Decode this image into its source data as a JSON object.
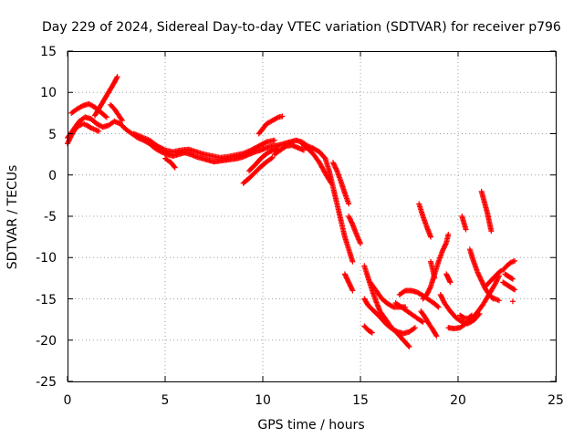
{
  "chart_data": {
    "type": "scatter",
    "title": "Day 229 of 2024, Sidereal Day-to-day VTEC variation (SDTVAR) for receiver p796",
    "xlabel": "GPS time / hours",
    "ylabel": "SDTVAR / TECUs",
    "xlim": [
      0,
      25
    ],
    "ylim": [
      -25,
      15
    ],
    "x_ticks": [
      "0",
      "5",
      "10",
      "15",
      "20",
      "25"
    ],
    "y_ticks": [
      "15",
      "10",
      "5",
      "0",
      "-5",
      "-10",
      "-15",
      "-20",
      "-25"
    ],
    "grid": true,
    "marker": "+",
    "color": "#ff0000",
    "tracks": [
      {
        "points": [
          [
            0.0,
            4.5
          ],
          [
            0.3,
            5.5
          ],
          [
            0.6,
            6.5
          ],
          [
            0.9,
            7.0
          ],
          [
            1.2,
            6.8
          ],
          [
            1.5,
            6.2
          ],
          [
            1.8,
            5.8
          ],
          [
            2.1,
            6.0
          ],
          [
            2.4,
            6.5
          ],
          [
            2.7,
            6.2
          ],
          [
            3.0,
            5.5
          ],
          [
            3.3,
            5.0
          ],
          [
            3.6,
            4.5
          ],
          [
            3.9,
            4.2
          ],
          [
            4.2,
            3.8
          ],
          [
            4.5,
            3.2
          ],
          [
            4.8,
            2.8
          ],
          [
            5.1,
            2.5
          ],
          [
            5.4,
            2.3
          ],
          [
            5.7,
            2.5
          ],
          [
            6.0,
            2.7
          ],
          [
            6.3,
            2.5
          ],
          [
            6.6,
            2.2
          ],
          [
            6.9,
            2.0
          ],
          [
            7.2,
            1.8
          ],
          [
            7.5,
            1.6
          ],
          [
            7.8,
            1.7
          ],
          [
            8.1,
            1.8
          ],
          [
            8.4,
            1.9
          ],
          [
            8.7,
            2.0
          ],
          [
            9.0,
            2.2
          ],
          [
            9.3,
            2.5
          ],
          [
            9.6,
            2.8
          ],
          [
            9.9,
            3.0
          ],
          [
            10.2,
            3.3
          ],
          [
            10.5,
            3.5
          ],
          [
            10.8,
            3.6
          ],
          [
            11.1,
            3.8
          ],
          [
            11.4,
            4.0
          ],
          [
            11.7,
            4.2
          ],
          [
            12.0,
            4.0
          ],
          [
            12.3,
            3.5
          ],
          [
            12.6,
            3.2
          ],
          [
            12.9,
            2.8
          ],
          [
            13.2,
            2.0
          ],
          [
            13.4,
            0.5
          ],
          [
            13.6,
            -1.5
          ],
          [
            13.8,
            -3.5
          ],
          [
            14.0,
            -5.5
          ],
          [
            14.2,
            -7.5
          ],
          [
            14.4,
            -9.0
          ],
          [
            14.6,
            -10.5
          ]
        ]
      },
      {
        "points": [
          [
            0.0,
            3.8
          ],
          [
            0.2,
            4.8
          ],
          [
            0.4,
            5.6
          ],
          [
            0.6,
            6.0
          ],
          [
            0.8,
            6.2
          ],
          [
            1.0,
            6.0
          ],
          [
            1.2,
            5.7
          ],
          [
            1.4,
            5.5
          ],
          [
            1.6,
            5.3
          ]
        ]
      },
      {
        "points": [
          [
            0.2,
            7.5
          ],
          [
            0.5,
            8.0
          ],
          [
            0.8,
            8.4
          ],
          [
            1.1,
            8.6
          ],
          [
            1.4,
            8.2
          ],
          [
            1.7,
            7.6
          ],
          [
            2.0,
            7.0
          ]
        ]
      },
      {
        "points": [
          [
            1.4,
            7.2
          ],
          [
            1.6,
            8.0
          ],
          [
            1.8,
            8.8
          ],
          [
            2.0,
            9.6
          ],
          [
            2.2,
            10.4
          ],
          [
            2.4,
            11.2
          ],
          [
            2.55,
            11.9
          ]
        ]
      },
      {
        "points": [
          [
            2.2,
            8.5
          ],
          [
            2.4,
            8.0
          ],
          [
            2.6,
            7.3
          ],
          [
            2.8,
            6.6
          ]
        ]
      },
      {
        "points": [
          [
            3.4,
            5.0
          ],
          [
            3.8,
            4.6
          ],
          [
            4.2,
            4.2
          ],
          [
            4.6,
            3.5
          ],
          [
            5.0,
            3.0
          ],
          [
            5.4,
            2.8
          ],
          [
            5.8,
            3.0
          ],
          [
            6.2,
            3.1
          ],
          [
            6.6,
            2.8
          ],
          [
            7.0,
            2.5
          ],
          [
            7.4,
            2.3
          ],
          [
            7.8,
            2.1
          ],
          [
            8.2,
            2.2
          ],
          [
            8.6,
            2.4
          ],
          [
            9.0,
            2.6
          ],
          [
            9.4,
            3.0
          ],
          [
            9.8,
            3.5
          ],
          [
            10.2,
            4.0
          ],
          [
            10.6,
            4.2
          ]
        ]
      },
      {
        "points": [
          [
            5.0,
            2.0
          ],
          [
            5.3,
            1.5
          ],
          [
            5.5,
            0.9
          ]
        ]
      },
      {
        "points": [
          [
            9.0,
            -1.0
          ],
          [
            9.3,
            -0.4
          ],
          [
            9.6,
            0.3
          ],
          [
            9.9,
            1.0
          ],
          [
            10.2,
            1.6
          ],
          [
            10.5,
            2.1
          ]
        ]
      },
      {
        "points": [
          [
            9.3,
            0.5
          ],
          [
            9.6,
            1.2
          ],
          [
            9.9,
            2.0
          ],
          [
            10.2,
            2.6
          ],
          [
            10.5,
            3.0
          ],
          [
            10.8,
            3.2
          ]
        ]
      },
      {
        "points": [
          [
            9.8,
            5.0
          ],
          [
            10.0,
            5.6
          ],
          [
            10.2,
            6.2
          ],
          [
            10.5,
            6.6
          ],
          [
            10.8,
            7.0
          ],
          [
            11.0,
            7.1
          ]
        ]
      },
      {
        "points": [
          [
            10.6,
            2.5
          ],
          [
            10.9,
            3.0
          ],
          [
            11.2,
            3.5
          ],
          [
            11.5,
            3.6
          ],
          [
            11.8,
            3.3
          ],
          [
            12.1,
            3.0
          ]
        ]
      },
      {
        "points": [
          [
            12.0,
            3.8
          ],
          [
            12.3,
            3.2
          ],
          [
            12.6,
            2.5
          ],
          [
            12.9,
            1.5
          ],
          [
            13.2,
            0.2
          ],
          [
            13.5,
            -1.0
          ]
        ]
      },
      {
        "points": [
          [
            13.6,
            1.5
          ],
          [
            13.8,
            0.5
          ],
          [
            14.0,
            -0.8
          ],
          [
            14.2,
            -2.2
          ],
          [
            14.4,
            -3.5
          ]
        ]
      },
      {
        "points": [
          [
            14.4,
            -5.0
          ],
          [
            14.6,
            -6.0
          ],
          [
            14.8,
            -7.2
          ],
          [
            15.0,
            -8.3
          ]
        ]
      },
      {
        "points": [
          [
            14.2,
            -12.0
          ],
          [
            14.4,
            -13.0
          ],
          [
            14.6,
            -14.0
          ]
        ]
      },
      {
        "points": [
          [
            15.2,
            -11.0
          ],
          [
            15.4,
            -12.5
          ],
          [
            15.6,
            -14.0
          ],
          [
            15.8,
            -15.3
          ],
          [
            16.0,
            -16.5
          ],
          [
            16.3,
            -17.5
          ],
          [
            16.6,
            -18.5
          ],
          [
            16.9,
            -19.2
          ],
          [
            17.2,
            -20.0
          ],
          [
            17.5,
            -20.8
          ]
        ]
      },
      {
        "points": [
          [
            15.2,
            -15.0
          ],
          [
            15.4,
            -15.8
          ],
          [
            15.7,
            -16.5
          ],
          [
            16.0,
            -17.2
          ],
          [
            16.3,
            -18.0
          ],
          [
            16.6,
            -18.6
          ],
          [
            16.9,
            -19.0
          ],
          [
            17.2,
            -19.2
          ],
          [
            17.5,
            -19.0
          ],
          [
            17.8,
            -18.5
          ]
        ]
      },
      {
        "points": [
          [
            15.5,
            -13.0
          ],
          [
            15.8,
            -14.0
          ],
          [
            16.1,
            -15.0
          ],
          [
            16.4,
            -15.6
          ],
          [
            16.7,
            -16.0
          ],
          [
            17.0,
            -16.0
          ],
          [
            17.3,
            -16.0
          ]
        ]
      },
      {
        "points": [
          [
            15.2,
            -18.3
          ],
          [
            15.4,
            -18.8
          ],
          [
            15.6,
            -19.1
          ]
        ]
      },
      {
        "points": [
          [
            17.0,
            -14.5
          ],
          [
            17.3,
            -14.0
          ],
          [
            17.6,
            -14.0
          ],
          [
            17.9,
            -14.2
          ],
          [
            18.2,
            -14.6
          ],
          [
            18.5,
            -15.1
          ],
          [
            18.8,
            -15.6
          ],
          [
            19.0,
            -16.0
          ]
        ]
      },
      {
        "points": [
          [
            16.8,
            -15.5
          ],
          [
            17.1,
            -16.0
          ],
          [
            17.4,
            -16.5
          ],
          [
            17.7,
            -17.0
          ],
          [
            18.0,
            -17.5
          ],
          [
            18.2,
            -17.8
          ]
        ]
      },
      {
        "points": [
          [
            18.0,
            -3.5
          ],
          [
            18.2,
            -5.0
          ],
          [
            18.4,
            -6.3
          ],
          [
            18.6,
            -7.5
          ]
        ]
      },
      {
        "points": [
          [
            18.1,
            -16.5
          ],
          [
            18.3,
            -17.2
          ],
          [
            18.5,
            -18.0
          ],
          [
            18.7,
            -18.7
          ],
          [
            18.9,
            -19.5
          ]
        ]
      },
      {
        "points": [
          [
            18.2,
            -15.0
          ],
          [
            18.4,
            -14.5
          ],
          [
            18.6,
            -13.5
          ],
          [
            18.8,
            -12.0
          ],
          [
            19.0,
            -10.5
          ],
          [
            19.2,
            -9.2
          ],
          [
            19.4,
            -8.2
          ],
          [
            19.5,
            -7.2
          ]
        ]
      },
      {
        "points": [
          [
            18.6,
            -10.5
          ],
          [
            18.7,
            -11.5
          ],
          [
            18.8,
            -12.5
          ]
        ]
      },
      {
        "points": [
          [
            19.1,
            -14.5
          ],
          [
            19.3,
            -15.5
          ],
          [
            19.6,
            -16.5
          ],
          [
            19.9,
            -17.3
          ],
          [
            20.2,
            -17.8
          ],
          [
            20.5,
            -18.0
          ],
          [
            20.8,
            -17.6
          ],
          [
            21.1,
            -16.8
          ]
        ]
      },
      {
        "points": [
          [
            19.4,
            -12.0
          ],
          [
            19.5,
            -12.5
          ],
          [
            19.6,
            -13.0
          ]
        ]
      },
      {
        "points": [
          [
            19.5,
            -18.5
          ],
          [
            19.8,
            -18.6
          ],
          [
            20.1,
            -18.5
          ],
          [
            20.4,
            -18.0
          ],
          [
            20.7,
            -17.4
          ],
          [
            21.0,
            -16.6
          ],
          [
            21.3,
            -15.6
          ],
          [
            21.6,
            -14.4
          ],
          [
            21.9,
            -13.2
          ],
          [
            22.1,
            -12.2
          ]
        ]
      },
      {
        "points": [
          [
            20.1,
            -17.0
          ],
          [
            20.3,
            -17.3
          ],
          [
            20.5,
            -17.4
          ],
          [
            20.7,
            -17.0
          ]
        ]
      },
      {
        "points": [
          [
            20.2,
            -5.0
          ],
          [
            20.3,
            -5.8
          ],
          [
            20.4,
            -6.6
          ]
        ]
      },
      {
        "points": [
          [
            20.6,
            -9.0
          ],
          [
            20.8,
            -10.5
          ],
          [
            21.0,
            -11.8
          ],
          [
            21.2,
            -12.8
          ],
          [
            21.4,
            -13.8
          ],
          [
            21.6,
            -14.5
          ],
          [
            21.8,
            -15.0
          ]
        ]
      },
      {
        "points": [
          [
            21.2,
            -2.0
          ],
          [
            21.35,
            -3.3
          ],
          [
            21.5,
            -4.6
          ],
          [
            21.6,
            -5.7
          ],
          [
            21.7,
            -6.8
          ]
        ]
      },
      {
        "points": [
          [
            21.4,
            -13.5
          ],
          [
            21.6,
            -13.0
          ],
          [
            21.8,
            -12.5
          ],
          [
            22.0,
            -12.0
          ],
          [
            22.2,
            -11.6
          ]
        ]
      },
      {
        "points": [
          [
            21.7,
            -14.8
          ],
          [
            21.9,
            -15.0
          ],
          [
            22.1,
            -15.2
          ]
        ]
      },
      {
        "points": [
          [
            22.3,
            -11.5
          ],
          [
            22.5,
            -11.0
          ],
          [
            22.7,
            -10.6
          ],
          [
            22.9,
            -10.4
          ]
        ]
      },
      {
        "points": [
          [
            22.3,
            -13.0
          ],
          [
            22.5,
            -13.3
          ],
          [
            22.7,
            -13.6
          ],
          [
            22.9,
            -13.9
          ]
        ]
      },
      {
        "points": [
          [
            22.4,
            -12.0
          ],
          [
            22.6,
            -12.3
          ],
          [
            22.8,
            -12.6
          ]
        ]
      },
      {
        "points": [
          [
            22.8,
            -15.3
          ]
        ]
      }
    ]
  }
}
